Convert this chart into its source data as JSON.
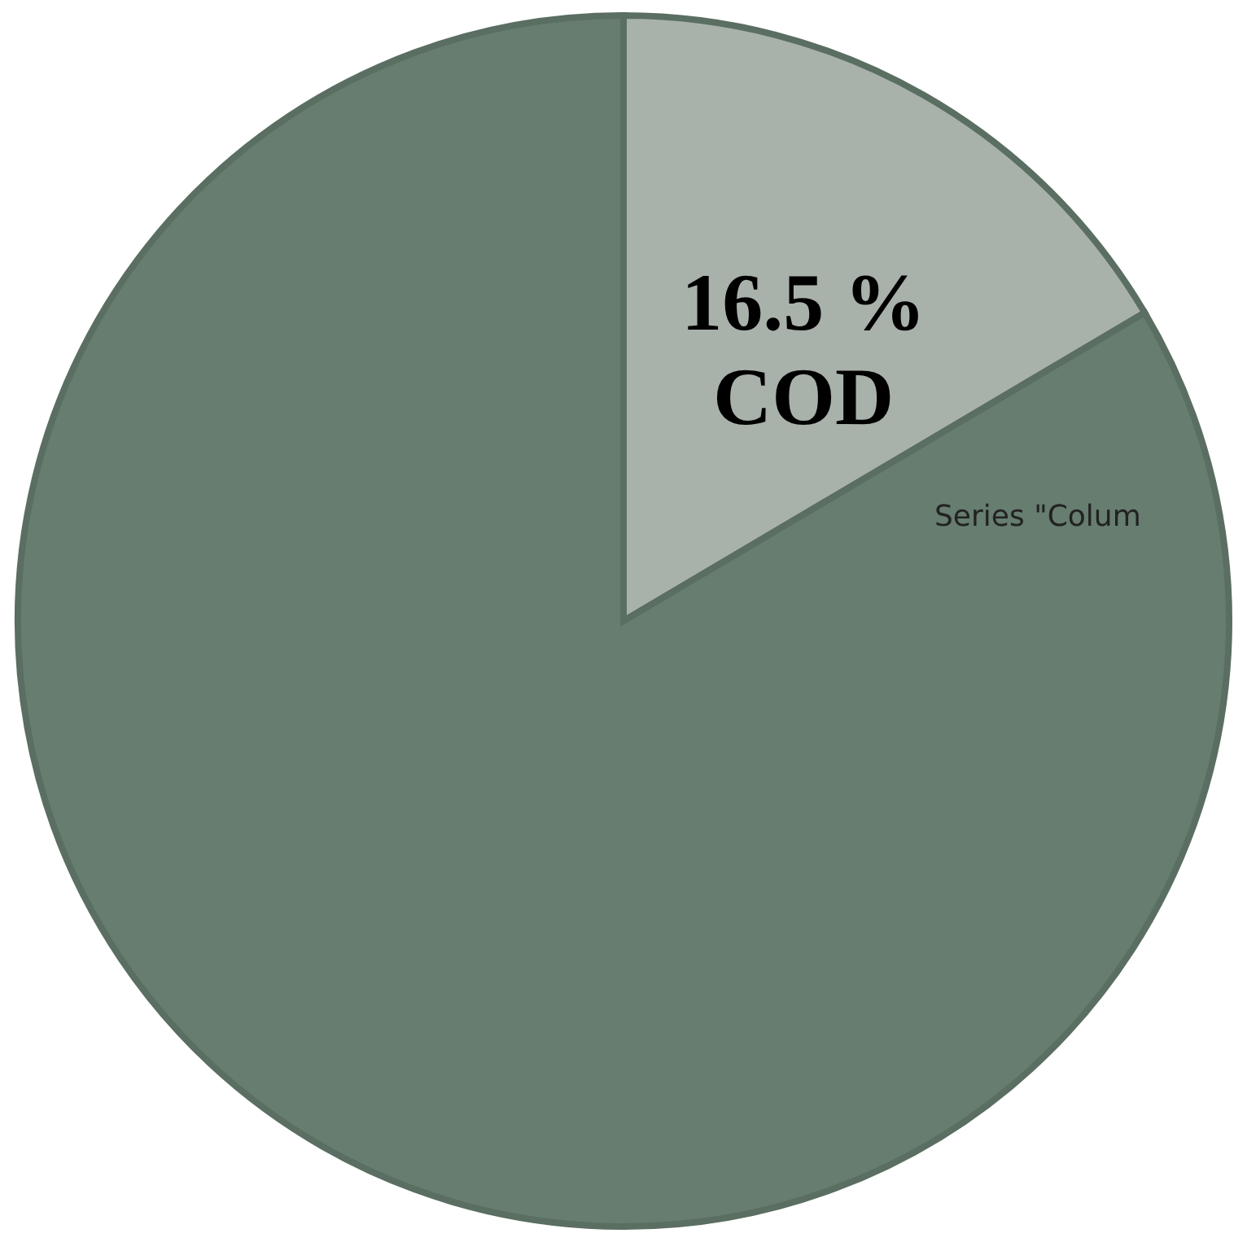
{
  "chart_data": {
    "type": "pie",
    "categories": [
      "COD",
      null
    ],
    "values": [
      16.5,
      83.5
    ],
    "colors": [
      "#a9b1ab",
      "#667d70"
    ],
    "value_labels": [
      "16.5 %",
      null
    ],
    "annotations": [
      "Series \"Colum"
    ]
  }
}
